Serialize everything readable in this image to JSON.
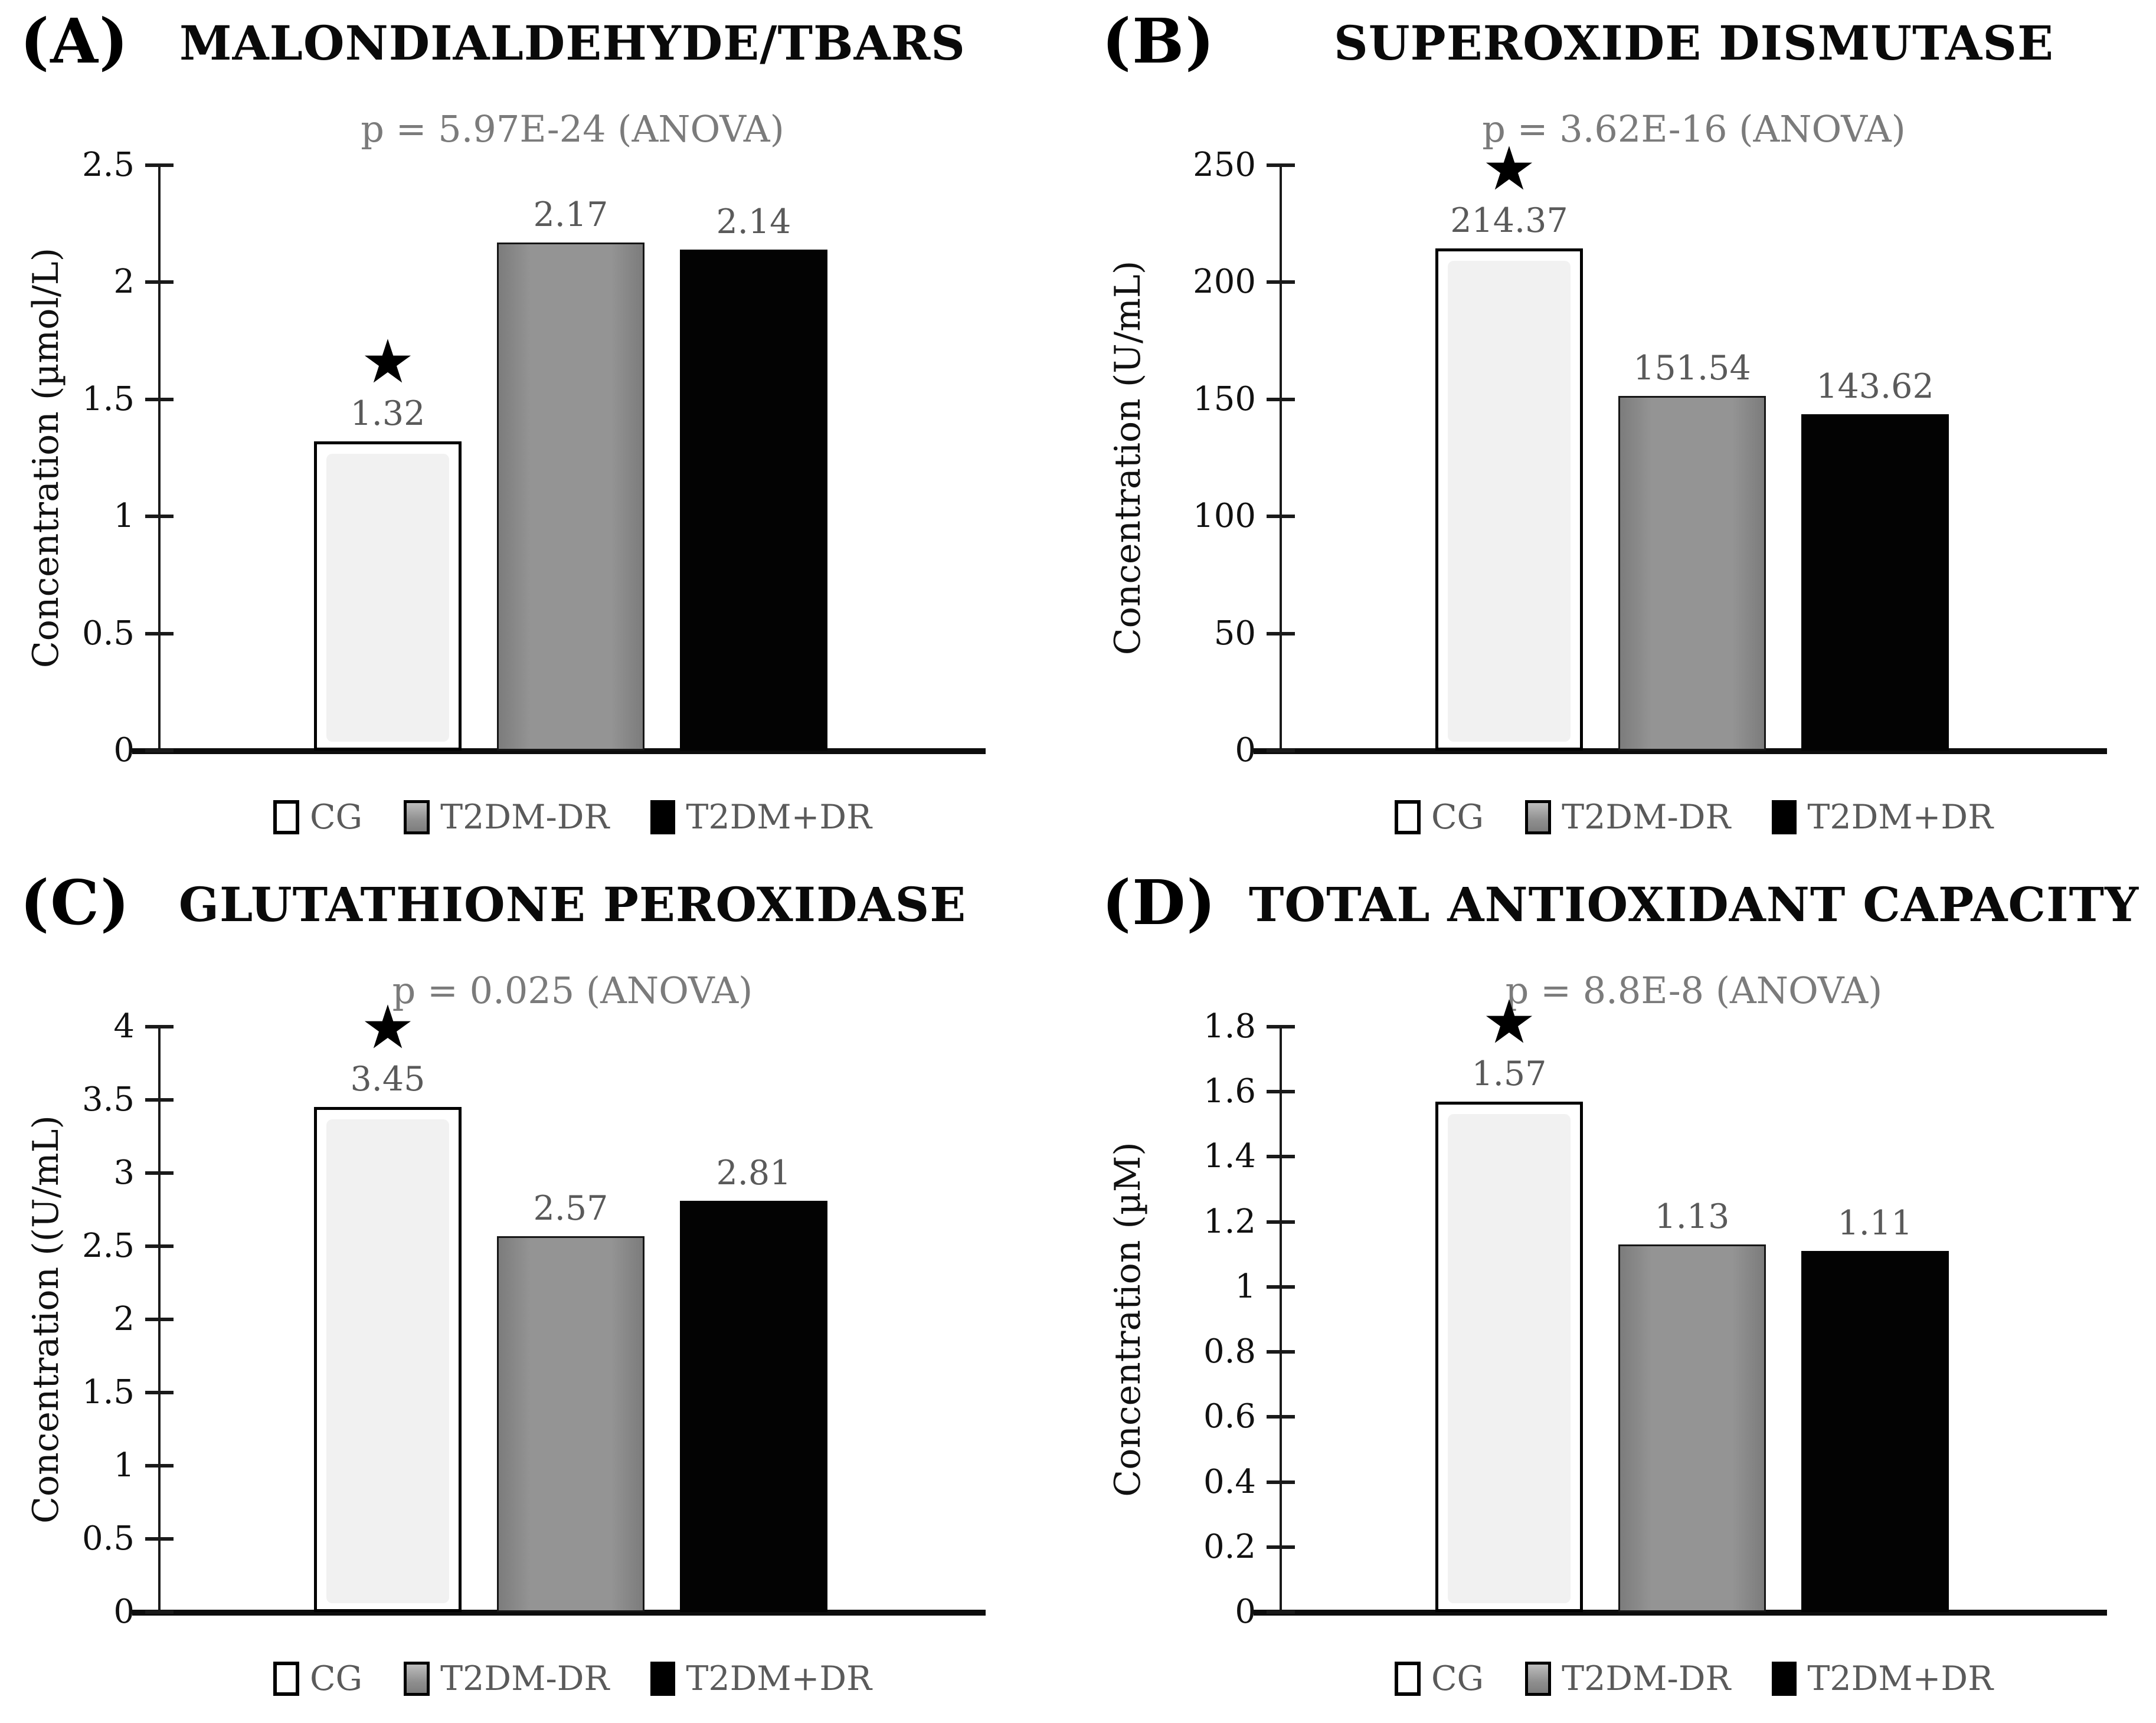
{
  "figure_legend_categories": [
    "CG",
    "T2DM-DR",
    "T2DM+DR"
  ],
  "style": {
    "cg_bar_fill": "#ffffff",
    "cg_bar_inner_fill": "#f1f1f1",
    "t2dm_dr_bar_fill": "#8f8f8f",
    "t2dm_plus_dr_bar_fill": "#000000",
    "bar_border": "#000000",
    "value_label_color": "#5a5a5a",
    "subtitle_color": "#7b7b7b",
    "title_color": "#0a0a0a",
    "significance_marker": "★"
  },
  "chart_data": [
    {
      "type": "bar",
      "panel_letter": "(A)",
      "title": "MALONDIALDEHYDE/TBARS",
      "subtitle": "p = 5.97E-24 (ANOVA)",
      "categories": [
        "CG",
        "T2DM-DR",
        "T2DM+DR"
      ],
      "values": [
        1.32,
        2.17,
        2.14
      ],
      "value_labels": [
        "1.32",
        "2.17",
        "2.14"
      ],
      "ylabel": "Concentration (µmol/L)",
      "xlabel": "",
      "ylim": [
        0,
        2.5
      ],
      "yticks": [
        "0",
        "0.5",
        "1",
        "1.5",
        "2",
        "2.5"
      ],
      "grid": false,
      "legend_position": "bottom",
      "legend": [
        "CG",
        "T2DM-DR",
        "T2DM+DR"
      ],
      "significance_star_category": "CG"
    },
    {
      "type": "bar",
      "panel_letter": "(B)",
      "title": "SUPEROXIDE DISMUTASE",
      "subtitle": "p = 3.62E-16 (ANOVA)",
      "categories": [
        "CG",
        "T2DM-DR",
        "T2DM+DR"
      ],
      "values": [
        214.37,
        151.54,
        143.62
      ],
      "value_labels": [
        "214.37",
        "151.54",
        "143.62"
      ],
      "ylabel": "Concentration (U/mL)",
      "xlabel": "",
      "ylim": [
        0,
        250
      ],
      "yticks": [
        "0",
        "50",
        "100",
        "150",
        "200",
        "250"
      ],
      "grid": false,
      "legend_position": "bottom",
      "legend": [
        "CG",
        "T2DM-DR",
        "T2DM+DR"
      ],
      "significance_star_category": "CG"
    },
    {
      "type": "bar",
      "panel_letter": "(C)",
      "title": "GLUTATHIONE PEROXIDASE",
      "subtitle": "p = 0.025 (ANOVA)",
      "categories": [
        "CG",
        "T2DM-DR",
        "T2DM+DR"
      ],
      "values": [
        3.45,
        2.57,
        2.81
      ],
      "value_labels": [
        "3.45",
        "2.57",
        "2.81"
      ],
      "ylabel": "Concentration ((U/mL)",
      "xlabel": "",
      "ylim": [
        0,
        4
      ],
      "yticks": [
        "0",
        "0.5",
        "1",
        "1.5",
        "2",
        "2.5",
        "3",
        "3.5",
        "4"
      ],
      "grid": false,
      "legend_position": "bottom",
      "legend": [
        "CG",
        "T2DM-DR",
        "T2DM+DR"
      ],
      "significance_star_category": "CG"
    },
    {
      "type": "bar",
      "panel_letter": "(D)",
      "title": "TOTAL ANTIOXIDANT CAPACITY",
      "subtitle": "p = 8.8E-8 (ANOVA)",
      "categories": [
        "CG",
        "T2DM-DR",
        "T2DM+DR"
      ],
      "values": [
        1.57,
        1.13,
        1.11
      ],
      "value_labels": [
        "1.57",
        "1.13",
        "1.11"
      ],
      "ylabel": "Concentration (µM)",
      "xlabel": "",
      "ylim": [
        0,
        1.8
      ],
      "yticks": [
        "0",
        "0.2",
        "0.4",
        "0.6",
        "0.8",
        "1",
        "1.2",
        "1.4",
        "1.6",
        "1.8"
      ],
      "grid": false,
      "legend_position": "bottom",
      "legend": [
        "CG",
        "T2DM-DR",
        "T2DM+DR"
      ],
      "significance_star_category": "CG"
    }
  ]
}
